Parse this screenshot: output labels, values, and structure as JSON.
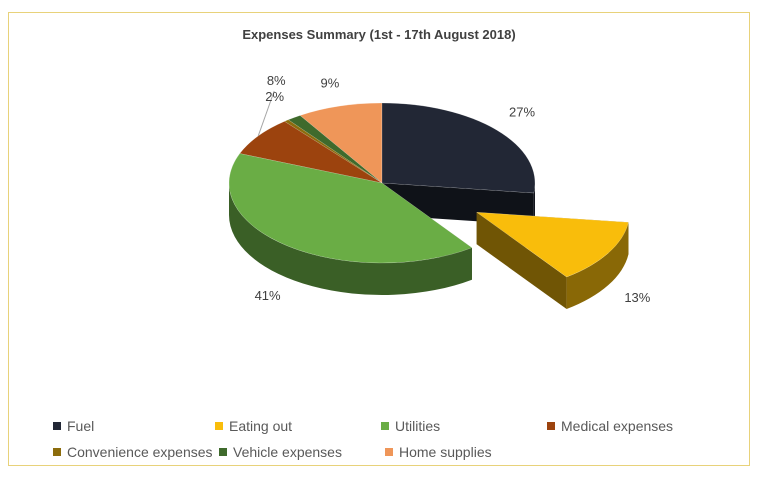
{
  "chart_data": {
    "type": "pie",
    "title": "Expenses Summary (1st - 17th August 2018)",
    "slices": [
      {
        "label": "Fuel",
        "value": 27,
        "display": "27%",
        "color": "#222735",
        "exploded": false
      },
      {
        "label": "Eating out",
        "value": 13,
        "display": "13%",
        "color": "#f9bd0b",
        "exploded": true
      },
      {
        "label": "Utilities",
        "value": 41,
        "display": "41%",
        "color": "#6aad45",
        "exploded": false
      },
      {
        "label": "Medical expenses",
        "value": 8,
        "display": "8%",
        "color": "#9c430e",
        "exploded": false
      },
      {
        "label": "Convenience expenses",
        "value": 0.5,
        "display": "",
        "color": "#8c6c0c",
        "exploded": false
      },
      {
        "label": "Vehicle expenses",
        "value": 1.5,
        "display": "2%",
        "color": "#3f6a2c",
        "exploded": false
      },
      {
        "label": "Home supplies",
        "value": 9,
        "display": "9%",
        "color": "#ef9659",
        "exploded": false
      }
    ],
    "legend_position": "bottom",
    "style": "3d exploded pie"
  }
}
